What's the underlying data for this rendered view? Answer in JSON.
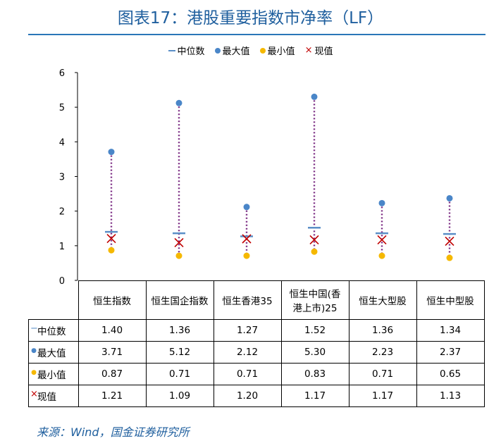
{
  "title": "图表17：港股重要指数市净率（LF）",
  "legend": {
    "median": "中位数",
    "max": "最大值",
    "min": "最小值",
    "current": "现值"
  },
  "colors": {
    "title": "#1f5f9e",
    "median": "#5b8fc7",
    "max": "#4a86c8",
    "min": "#f5b800",
    "current": "#c00000",
    "range_line": "#7b2b82"
  },
  "chart_data": {
    "type": "table",
    "chart_kind": "range-dot",
    "categories": [
      "恒生指数",
      "恒生国企指数",
      "恒生香港35",
      "恒生中国(香港上市)25",
      "恒生大型股",
      "恒生中型股"
    ],
    "category_lines": [
      [
        "恒生指数"
      ],
      [
        "恒生国企指数"
      ],
      [
        "恒生香港35"
      ],
      [
        "恒生中国(香",
        "港上市)25"
      ],
      [
        "恒生大型股"
      ],
      [
        "恒生中型股"
      ]
    ],
    "series": [
      {
        "name": "中位数",
        "key": "median",
        "values": [
          1.4,
          1.36,
          1.27,
          1.52,
          1.36,
          1.34
        ]
      },
      {
        "name": "最大值",
        "key": "max",
        "values": [
          3.71,
          5.12,
          2.12,
          5.3,
          2.23,
          2.37
        ]
      },
      {
        "name": "最小值",
        "key": "min",
        "values": [
          0.87,
          0.71,
          0.71,
          0.83,
          0.71,
          0.65
        ]
      },
      {
        "name": "现值",
        "key": "current",
        "values": [
          1.21,
          1.09,
          1.2,
          1.17,
          1.17,
          1.13
        ]
      }
    ],
    "value_strings": [
      [
        "1.40",
        "1.36",
        "1.27",
        "1.52",
        "1.36",
        "1.34"
      ],
      [
        "3.71",
        "5.12",
        "2.12",
        "5.30",
        "2.23",
        "2.37"
      ],
      [
        "0.87",
        "0.71",
        "0.71",
        "0.83",
        "0.71",
        "0.65"
      ],
      [
        "1.21",
        "1.09",
        "1.20",
        "1.17",
        "1.17",
        "1.13"
      ]
    ],
    "ylim": [
      0,
      6
    ],
    "yticks": [
      "0",
      "1",
      "2",
      "3",
      "4",
      "5",
      "6"
    ],
    "legend_position": "top"
  },
  "row_symbols": [
    "−",
    "●",
    "●",
    "×"
  ],
  "source": "来源：Wind，国金证券研究所"
}
